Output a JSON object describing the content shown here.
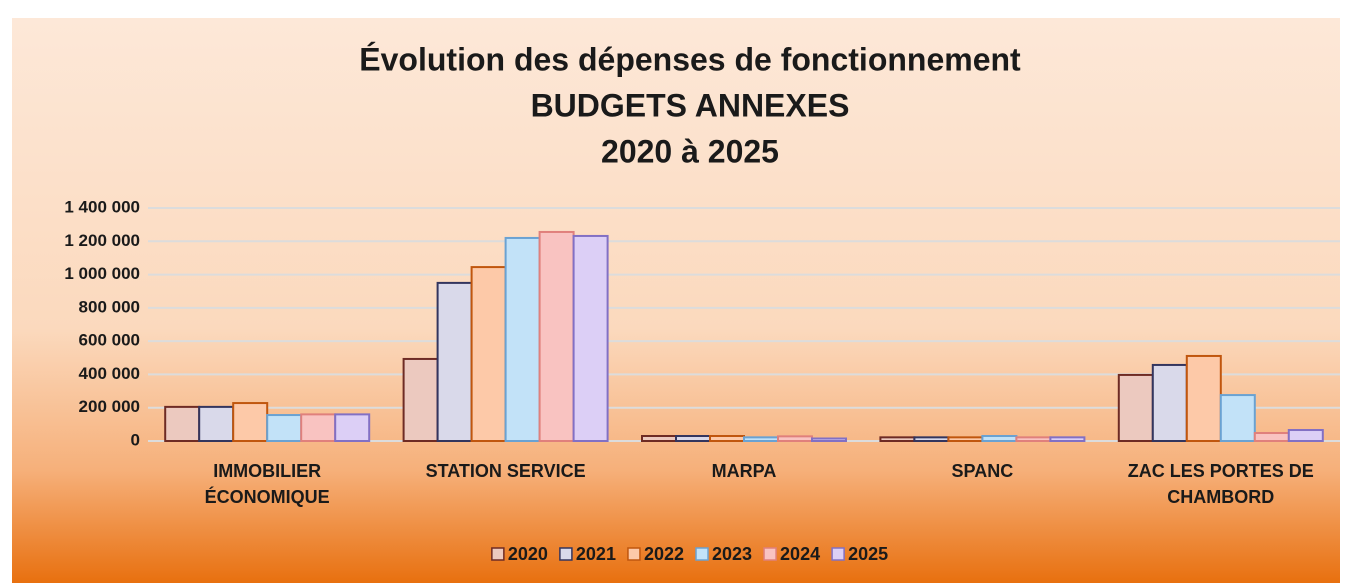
{
  "chart_data": {
    "type": "bar",
    "title": [
      "Évolution des dépenses de fonctionnement",
      "BUDGETS  ANNEXES",
      "2020 à 2025"
    ],
    "categories": [
      "IMMOBILIER ÉCONOMIQUE",
      "STATION SERVICE",
      "MARPA",
      "SPANC",
      "ZAC LES PORTES DE CHAMBORD"
    ],
    "series": [
      {
        "name": "2020",
        "color": "#ecc9bf",
        "edgecolor": "#6e2b24",
        "values": [
          205000,
          493000,
          30000,
          22000,
          397000
        ]
      },
      {
        "name": "2021",
        "color": "#d9d9ea",
        "edgecolor": "#33355e",
        "values": [
          205000,
          950000,
          30000,
          22000,
          457000
        ]
      },
      {
        "name": "2022",
        "color": "#fdc9a8",
        "edgecolor": "#c0560e",
        "values": [
          228000,
          1045000,
          30000,
          22000,
          511000
        ]
      },
      {
        "name": "2023",
        "color": "#c2e2f8",
        "edgecolor": "#6aa2d2",
        "values": [
          156000,
          1220000,
          22000,
          30000,
          276000
        ]
      },
      {
        "name": "2024",
        "color": "#f9c3c1",
        "edgecolor": "#e0807c",
        "values": [
          160000,
          1256000,
          28000,
          22000,
          48000
        ]
      },
      {
        "name": "2025",
        "color": "#dccff6",
        "edgecolor": "#8270c4",
        "values": [
          160000,
          1232000,
          15000,
          22000,
          66000
        ]
      }
    ],
    "ylim": [
      0,
      1400000
    ],
    "yticks": [
      0,
      {
        "value": 200000,
        "label": "200 000"
      },
      {
        "value": 400000,
        "label": "400 000"
      },
      {
        "value": 600000,
        "label": "600 000"
      },
      {
        "value": 800000,
        "label": "800 000"
      },
      {
        "value": 1000000,
        "label": "1 000 000"
      },
      {
        "value": 1200000,
        "label": "1 200 000"
      },
      {
        "value": 1400000,
        "label": "1 400 000"
      }
    ],
    "grid": true,
    "legend": "bottom"
  }
}
